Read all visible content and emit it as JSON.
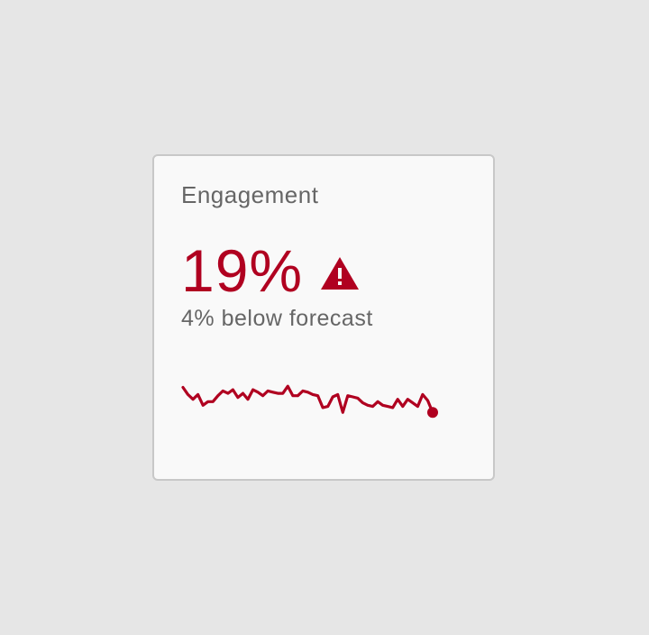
{
  "card": {
    "title": "Engagement",
    "value": "19%",
    "subtitle": "4% below forecast",
    "status_icon": "warning-triangle-icon",
    "accent_color": "#b00020"
  },
  "chart_data": {
    "type": "line",
    "title": "",
    "xlabel": "",
    "ylabel": "",
    "grid": false,
    "legend": "none",
    "ylim": [
      0,
      100
    ],
    "values": [
      72,
      60,
      52,
      60,
      42,
      48,
      48,
      58,
      66,
      62,
      68,
      55,
      62,
      52,
      68,
      64,
      58,
      66,
      64,
      62,
      62,
      74,
      58,
      58,
      66,
      64,
      60,
      58,
      38,
      40,
      56,
      60,
      30,
      58,
      56,
      54,
      46,
      42,
      40,
      48,
      42,
      40,
      38,
      52,
      40,
      52,
      46,
      40,
      60,
      50,
      30
    ],
    "marker_last": true
  }
}
